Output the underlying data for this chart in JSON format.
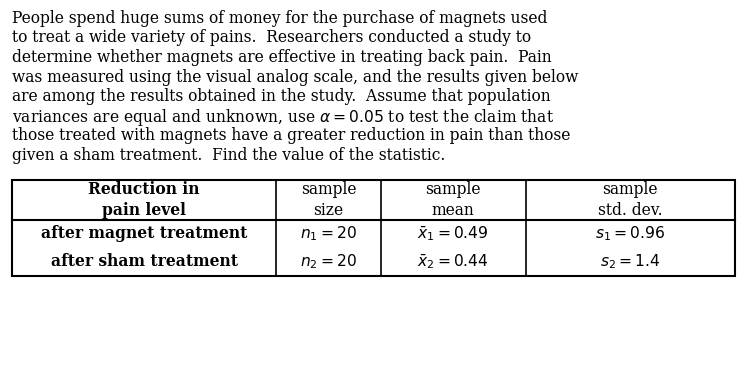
{
  "lines": [
    "People spend huge sums of money for the purchase of magnets used",
    "to treat a wide variety of pains.  Researchers conducted a study to",
    "determine whether magnets are effective in treating back pain.  Pain",
    "was measured using the visual analog scale, and the results given below",
    "are among the results obtained in the study.  Assume that population",
    "variances are equal and unknown, use $\\alpha = 0.05$ to test the claim that",
    "those treated with magnets have a greater reduction in pain than those",
    "given a sham treatment.  Find the value of the statistic."
  ],
  "header_col0": "Reduction in\npain level",
  "header_col1": "sample\nsize",
  "header_col2": "sample\nmean",
  "header_col3": "sample\nstd. dev.",
  "row1": [
    "after magnet treatment",
    "$n_1 = 20$",
    "$\\bar{x}_1 = 0.49$",
    "$s_1 = 0.96$"
  ],
  "row2": [
    "after sham treatment",
    "$n_2 = 20$",
    "$\\bar{x}_2 = 0.44$",
    "$s_2 = 1.4$"
  ],
  "bg_color": "#ffffff",
  "text_color": "#000000",
  "para_fontsize": 11.2,
  "table_fontsize": 11.2
}
